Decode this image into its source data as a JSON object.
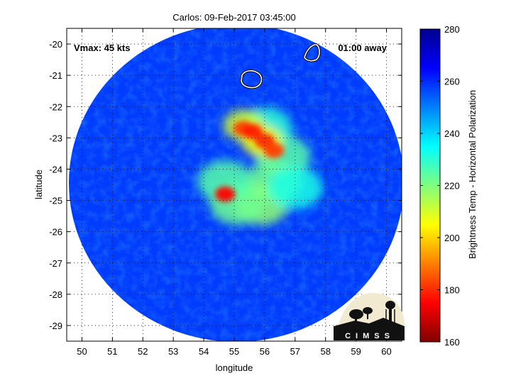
{
  "title": "Carlos: 09-Feb-2017 03:45:00",
  "annotations": {
    "vmax": "Vmax: 45 kts",
    "time_away": "01:00 away"
  },
  "axes": {
    "xlabel": "longitude",
    "ylabel": "latitude",
    "xlim": [
      49.5,
      60.5
    ],
    "ylim": [
      -29.5,
      -19.5
    ],
    "xticks": [
      50,
      51,
      52,
      53,
      54,
      55,
      56,
      57,
      58,
      59,
      60
    ],
    "yticks": [
      -20,
      -21,
      -22,
      -23,
      -24,
      -25,
      -26,
      -27,
      -28,
      -29
    ],
    "grid": "dotted"
  },
  "colorbar": {
    "label": "Brightness Temp - Horizontal Polarization",
    "range": [
      160,
      280
    ],
    "ticks": [
      160,
      180,
      200,
      220,
      240,
      260,
      280
    ],
    "colormap": "jet"
  },
  "logo": {
    "text": "CIMSS"
  },
  "map_data": {
    "swath_center": [
      55.0,
      -24.5
    ],
    "background_value": 258,
    "islands": [
      {
        "name": "reunion-outline",
        "center": [
          55.5,
          -21.1
        ]
      },
      {
        "name": "mauritius-outline",
        "center": [
          57.6,
          -20.3
        ]
      }
    ],
    "cold_features": [
      {
        "lon": 56.0,
        "lat": -22.7,
        "value": 230
      },
      {
        "lon": 56.6,
        "lat": -23.6,
        "value": 225
      },
      {
        "lon": 56.3,
        "lat": -24.4,
        "value": 222
      },
      {
        "lon": 55.9,
        "lat": -25.1,
        "value": 218
      },
      {
        "lon": 55.1,
        "lat": -25.1,
        "value": 222
      },
      {
        "lon": 57.0,
        "lat": -24.6,
        "value": 232
      },
      {
        "lon": 55.3,
        "lat": -22.6,
        "value": 210
      },
      {
        "lon": 55.9,
        "lat": -23.1,
        "value": 205
      },
      {
        "lon": 54.7,
        "lat": -24.4,
        "value": 225
      },
      {
        "lon": 55.3,
        "lat": -22.7,
        "value": 182
      },
      {
        "lon": 55.6,
        "lat": -22.8,
        "value": 178
      },
      {
        "lon": 56.0,
        "lat": -23.1,
        "value": 180
      },
      {
        "lon": 56.3,
        "lat": -23.4,
        "value": 182
      },
      {
        "lon": 54.7,
        "lat": -24.8,
        "value": 175
      }
    ]
  }
}
